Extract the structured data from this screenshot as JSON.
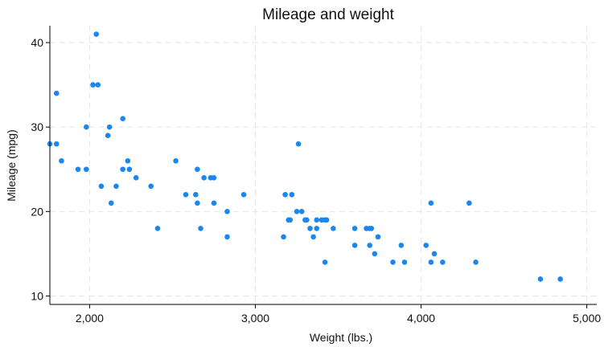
{
  "chart_data": {
    "type": "scatter",
    "title": "Mileage and weight",
    "xlabel": "Weight (lbs.)",
    "ylabel": "Mileage (mpg)",
    "xlim": [
      1760,
      5060
    ],
    "ylim": [
      9,
      42
    ],
    "xticks": [
      2000,
      3000,
      4000,
      5000
    ],
    "xtick_labels": [
      "2,000",
      "3,000",
      "4,000",
      "5,000"
    ],
    "yticks": [
      10,
      20,
      30,
      40
    ],
    "ytick_labels": [
      "10",
      "20",
      "30",
      "40"
    ],
    "grid": true,
    "marker_color": "#1a86f0",
    "series": [
      {
        "points": [
          [
            1760,
            28
          ],
          [
            1800,
            28
          ],
          [
            1800,
            34
          ],
          [
            1830,
            26
          ],
          [
            1930,
            25
          ],
          [
            1980,
            25
          ],
          [
            1980,
            30
          ],
          [
            2020,
            35
          ],
          [
            2040,
            41
          ],
          [
            2050,
            35
          ],
          [
            2070,
            23
          ],
          [
            2110,
            29
          ],
          [
            2120,
            30
          ],
          [
            2130,
            21
          ],
          [
            2160,
            23
          ],
          [
            2200,
            25
          ],
          [
            2200,
            31
          ],
          [
            2230,
            26
          ],
          [
            2240,
            25
          ],
          [
            2280,
            24
          ],
          [
            2370,
            23
          ],
          [
            2410,
            18
          ],
          [
            2520,
            26
          ],
          [
            2580,
            22
          ],
          [
            2640,
            22
          ],
          [
            2650,
            25
          ],
          [
            2650,
            21
          ],
          [
            2670,
            18
          ],
          [
            2690,
            24
          ],
          [
            2730,
            24
          ],
          [
            2750,
            24
          ],
          [
            2750,
            21
          ],
          [
            2830,
            20
          ],
          [
            2830,
            17
          ],
          [
            2930,
            22
          ],
          [
            3170,
            17
          ],
          [
            3180,
            22
          ],
          [
            3200,
            19
          ],
          [
            3210,
            19
          ],
          [
            3220,
            22
          ],
          [
            3250,
            20
          ],
          [
            3260,
            28
          ],
          [
            3280,
            20
          ],
          [
            3300,
            19
          ],
          [
            3310,
            19
          ],
          [
            3330,
            18
          ],
          [
            3350,
            17
          ],
          [
            3370,
            19
          ],
          [
            3370,
            18
          ],
          [
            3400,
            19
          ],
          [
            3420,
            14
          ],
          [
            3420,
            19
          ],
          [
            3430,
            19
          ],
          [
            3470,
            18
          ],
          [
            3600,
            18
          ],
          [
            3600,
            16
          ],
          [
            3670,
            18
          ],
          [
            3690,
            16
          ],
          [
            3690,
            18
          ],
          [
            3700,
            18
          ],
          [
            3720,
            15
          ],
          [
            3740,
            17
          ],
          [
            3830,
            14
          ],
          [
            3880,
            16
          ],
          [
            3900,
            14
          ],
          [
            4030,
            16
          ],
          [
            4060,
            21
          ],
          [
            4060,
            14
          ],
          [
            4080,
            15
          ],
          [
            4130,
            14
          ],
          [
            4290,
            21
          ],
          [
            4330,
            14
          ],
          [
            4720,
            12
          ],
          [
            4840,
            12
          ]
        ]
      }
    ]
  }
}
